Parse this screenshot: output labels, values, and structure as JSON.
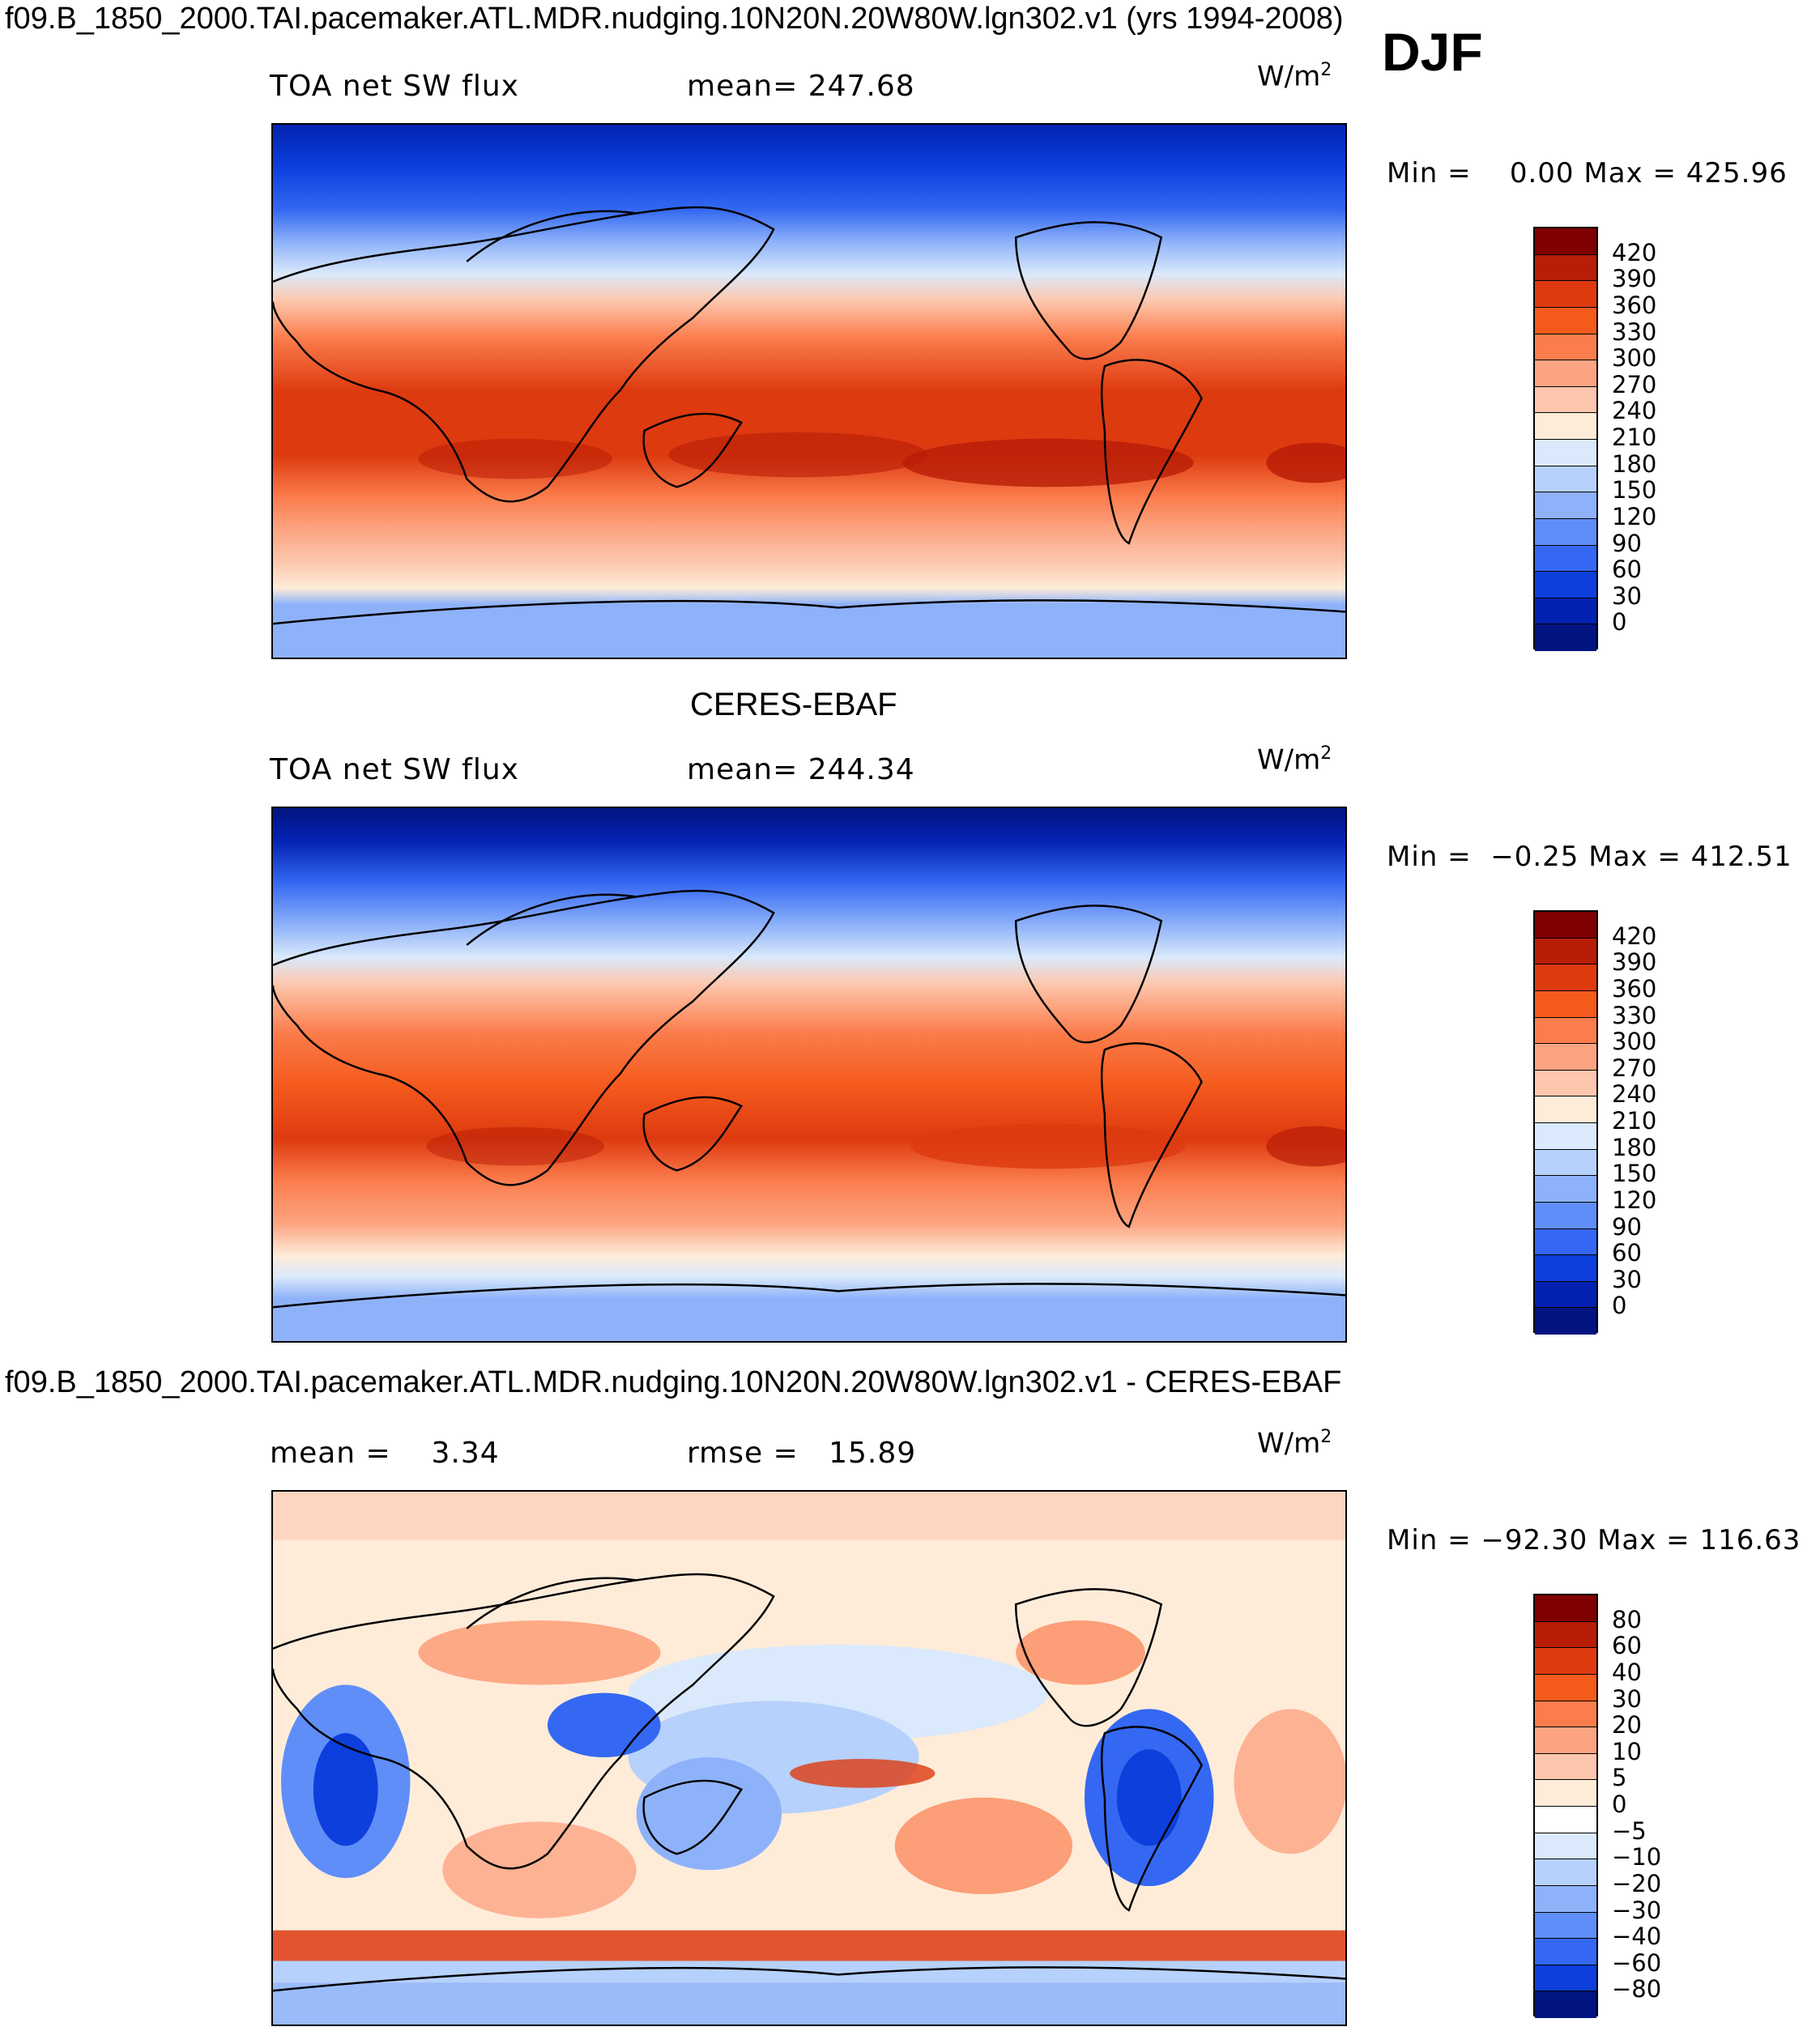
{
  "header": {
    "case_title": "f09.B_1850_2000.TAI.pacemaker.ATL.MDR.nudging.10N20N.20W80W.lgn302.v1 (yrs 1994-2008)",
    "season": "DJF"
  },
  "panels": [
    {
      "variable": "TOA net SW flux",
      "stat_text": "mean= 247.68",
      "units": "W/m",
      "units_exp": "2",
      "minmax": "Min =    0.00 Max = 425.96",
      "scale": "abs",
      "colorbar": {
        "labels": [
          "420",
          "390",
          "360",
          "330",
          "300",
          "270",
          "240",
          "210",
          "180",
          "150",
          "120",
          "90",
          "60",
          "30",
          "0"
        ],
        "colors": [
          "#800000",
          "#b81d06",
          "#dd3a10",
          "#f55a1d",
          "#fb7d4d",
          "#fca482",
          "#fdc7ad",
          "#feecd9",
          "#dae9fb",
          "#b6d1fb",
          "#8eb2fa",
          "#5f8ef8",
          "#3468f2",
          "#0c3fdc",
          "#0322b1",
          "#021480"
        ]
      }
    },
    {
      "title": "CERES-EBAF",
      "variable": "TOA net SW flux",
      "stat_text": "mean= 244.34",
      "units": "W/m",
      "units_exp": "2",
      "minmax": "Min =  −0.25 Max = 412.51",
      "scale": "abs",
      "colorbar": {
        "labels": [
          "420",
          "390",
          "360",
          "330",
          "300",
          "270",
          "240",
          "210",
          "180",
          "150",
          "120",
          "90",
          "60",
          "30",
          "0"
        ],
        "colors": [
          "#800000",
          "#b81d06",
          "#dd3a10",
          "#f55a1d",
          "#fb7d4d",
          "#fca482",
          "#fdc7ad",
          "#feecd9",
          "#dae9fb",
          "#b6d1fb",
          "#8eb2fa",
          "#5f8ef8",
          "#3468f2",
          "#0c3fdc",
          "#0322b1",
          "#021480"
        ]
      }
    },
    {
      "title": "f09.B_1850_2000.TAI.pacemaker.ATL.MDR.nudging.10N20N.20W80W.lgn302.v1 - CERES-EBAF",
      "stat_left": "mean =    3.34",
      "stat_text": "rmse =   15.89",
      "units": "W/m",
      "units_exp": "2",
      "minmax": "Min = −92.30 Max = 116.63",
      "scale": "diff",
      "colorbar": {
        "labels": [
          "80",
          "60",
          "40",
          "30",
          "20",
          "10",
          "5",
          "0",
          "−5",
          "−10",
          "−20",
          "−30",
          "−40",
          "−60",
          "−80"
        ],
        "colors": [
          "#800000",
          "#b81d06",
          "#dd3a10",
          "#f55a1d",
          "#fb7d4d",
          "#fca482",
          "#fdc7ad",
          "#feecd9",
          "#ffffff",
          "#dae9fb",
          "#b6d1fb",
          "#8eb2fa",
          "#5f8ef8",
          "#3468f2",
          "#0c3fdc",
          "#021480"
        ]
      }
    }
  ]
}
